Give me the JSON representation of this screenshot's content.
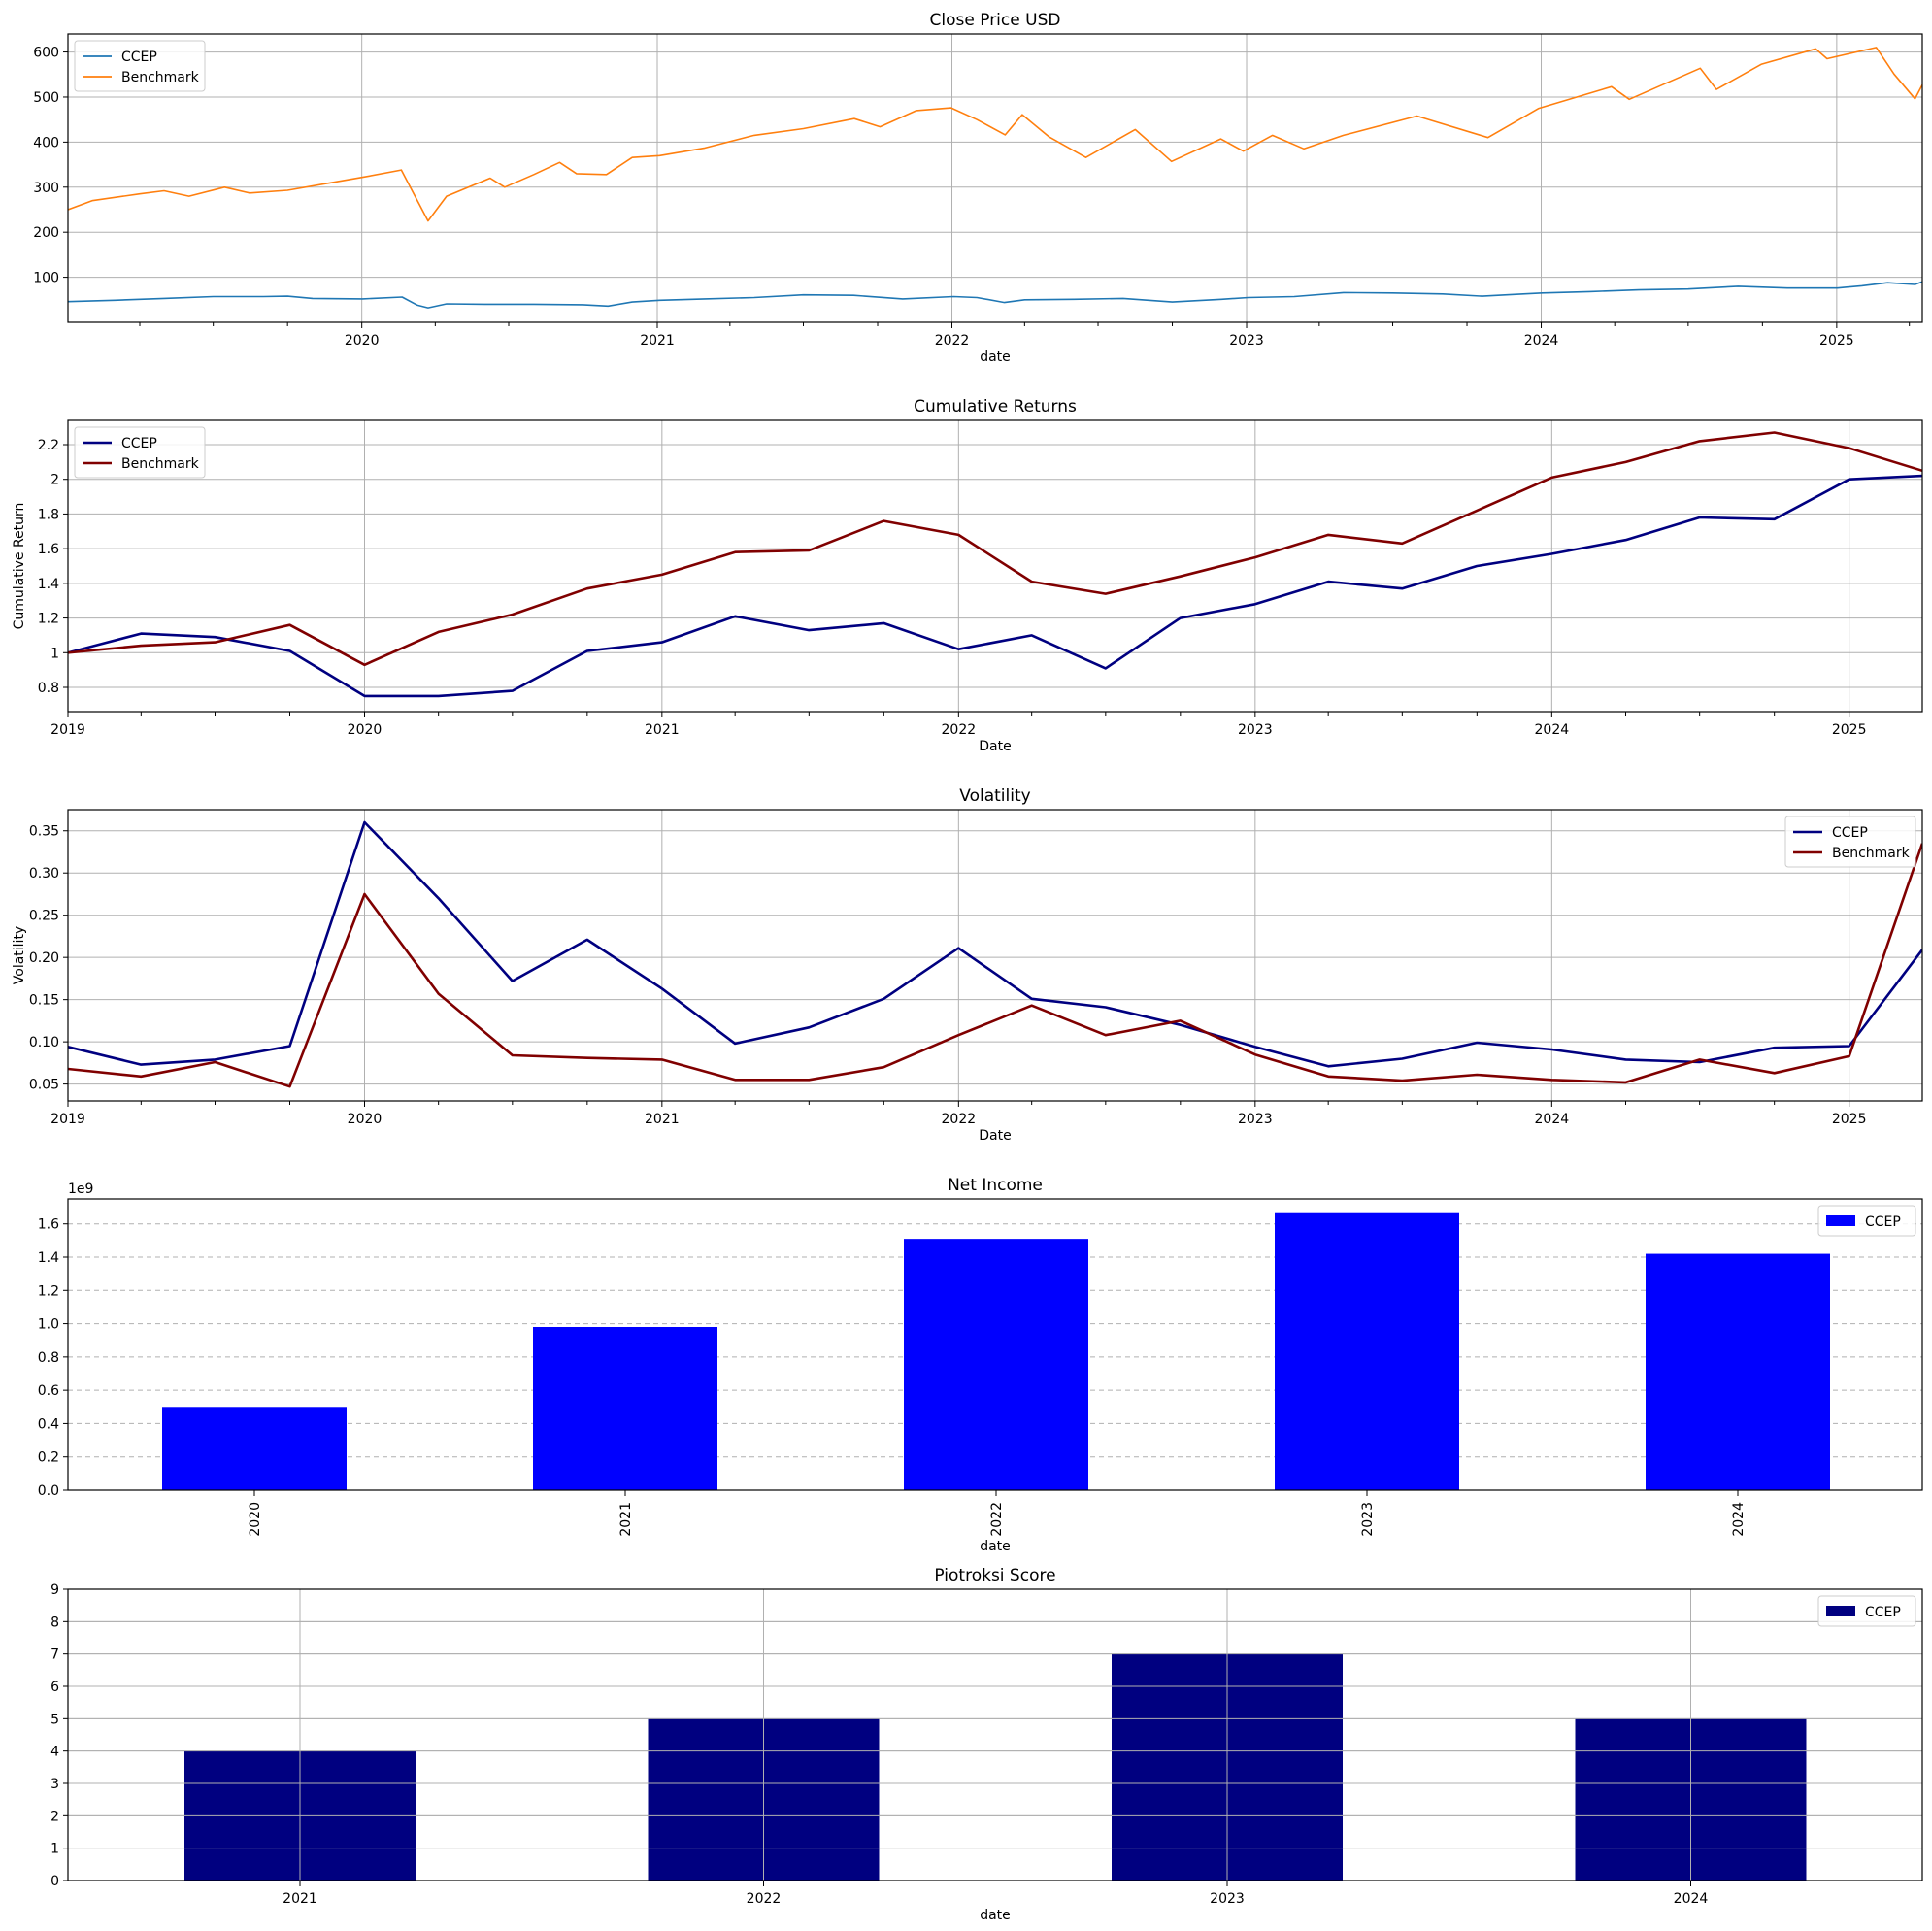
{
  "colors": {
    "ccep_price": "#1f77b4",
    "bench_price": "#ff7f0e",
    "navy": "#000080",
    "maroon": "#800000",
    "blue": "#0000ff",
    "grid": "#b0b0b0",
    "axis": "#000000"
  },
  "chart_data": [
    {
      "id": "close",
      "type": "line",
      "title": "Close Price USD",
      "xlabel": "date",
      "ylabel": "",
      "xlim": [
        "2019-01-02",
        "2025-04-17"
      ],
      "ylim": [
        0,
        640
      ],
      "yticks": [
        100,
        200,
        300,
        400,
        500,
        600
      ],
      "xticks": [
        "2020",
        "2021",
        "2022",
        "2023",
        "2024",
        "2025"
      ],
      "grid": "both",
      "legend": "top-left",
      "series": [
        {
          "name": "CCEP",
          "color_key": "ccep_price",
          "points": [
            [
              "2019-01-02",
              46
            ],
            [
              "2019-03-01",
              49
            ],
            [
              "2019-05-01",
              53
            ],
            [
              "2019-07-01",
              57
            ],
            [
              "2019-09-01",
              57
            ],
            [
              "2019-10-01",
              58
            ],
            [
              "2019-11-01",
              53
            ],
            [
              "2020-01-02",
              52
            ],
            [
              "2020-02-20",
              56
            ],
            [
              "2020-03-10",
              38
            ],
            [
              "2020-03-23",
              32
            ],
            [
              "2020-04-15",
              41
            ],
            [
              "2020-06-01",
              40
            ],
            [
              "2020-08-01",
              40
            ],
            [
              "2020-10-01",
              39
            ],
            [
              "2020-11-01",
              36
            ],
            [
              "2020-12-01",
              45
            ],
            [
              "2021-01-04",
              49
            ],
            [
              "2021-03-01",
              52
            ],
            [
              "2021-05-01",
              55
            ],
            [
              "2021-07-01",
              61
            ],
            [
              "2021-09-01",
              60
            ],
            [
              "2021-11-01",
              52
            ],
            [
              "2022-01-03",
              57
            ],
            [
              "2022-02-01",
              55
            ],
            [
              "2022-03-07",
              44
            ],
            [
              "2022-04-01",
              50
            ],
            [
              "2022-06-01",
              51
            ],
            [
              "2022-08-01",
              53
            ],
            [
              "2022-10-01",
              45
            ],
            [
              "2022-12-01",
              51
            ],
            [
              "2023-01-03",
              55
            ],
            [
              "2023-03-01",
              57
            ],
            [
              "2023-05-01",
              66
            ],
            [
              "2023-07-01",
              65
            ],
            [
              "2023-09-01",
              63
            ],
            [
              "2023-10-20",
              58
            ],
            [
              "2023-12-01",
              62
            ],
            [
              "2024-01-02",
              65
            ],
            [
              "2024-03-01",
              68
            ],
            [
              "2024-05-01",
              72
            ],
            [
              "2024-07-01",
              74
            ],
            [
              "2024-09-01",
              80
            ],
            [
              "2024-11-01",
              76
            ],
            [
              "2025-01-02",
              76
            ],
            [
              "2025-02-01",
              81
            ],
            [
              "2025-03-05",
              88
            ],
            [
              "2025-04-08",
              84
            ],
            [
              "2025-04-17",
              90
            ]
          ]
        },
        {
          "name": "Benchmark",
          "color_key": "bench_price",
          "points": [
            [
              "2019-01-02",
              250
            ],
            [
              "2019-02-01",
              270
            ],
            [
              "2019-04-01",
              285
            ],
            [
              "2019-05-01",
              292
            ],
            [
              "2019-06-01",
              280
            ],
            [
              "2019-07-15",
              300
            ],
            [
              "2019-08-15",
              287
            ],
            [
              "2019-10-01",
              293
            ],
            [
              "2019-12-01",
              312
            ],
            [
              "2020-01-02",
              322
            ],
            [
              "2020-02-19",
              338
            ],
            [
              "2020-03-01",
              300
            ],
            [
              "2020-03-23",
              225
            ],
            [
              "2020-04-15",
              280
            ],
            [
              "2020-06-08",
              320
            ],
            [
              "2020-06-26",
              300
            ],
            [
              "2020-08-01",
              328
            ],
            [
              "2020-09-02",
              355
            ],
            [
              "2020-09-23",
              330
            ],
            [
              "2020-10-30",
              328
            ],
            [
              "2020-12-01",
              366
            ],
            [
              "2021-01-04",
              370
            ],
            [
              "2021-03-01",
              387
            ],
            [
              "2021-05-01",
              415
            ],
            [
              "2021-07-01",
              430
            ],
            [
              "2021-09-02",
              452
            ],
            [
              "2021-10-04",
              434
            ],
            [
              "2021-11-18",
              470
            ],
            [
              "2021-12-31",
              476
            ],
            [
              "2022-02-01",
              450
            ],
            [
              "2022-03-08",
              416
            ],
            [
              "2022-03-29",
              461
            ],
            [
              "2022-05-01",
              412
            ],
            [
              "2022-06-16",
              366
            ],
            [
              "2022-08-16",
              428
            ],
            [
              "2022-09-30",
              357
            ],
            [
              "2022-11-30",
              407
            ],
            [
              "2022-12-28",
              380
            ],
            [
              "2023-02-02",
              415
            ],
            [
              "2023-03-13",
              385
            ],
            [
              "2023-05-01",
              415
            ],
            [
              "2023-07-31",
              458
            ],
            [
              "2023-10-27",
              410
            ],
            [
              "2023-12-29",
              475
            ],
            [
              "2024-03-28",
              523
            ],
            [
              "2024-04-19",
              495
            ],
            [
              "2024-07-16",
              564
            ],
            [
              "2024-08-05",
              517
            ],
            [
              "2024-09-30",
              573
            ],
            [
              "2024-12-06",
              607
            ],
            [
              "2024-12-20",
              585
            ],
            [
              "2025-02-19",
              610
            ],
            [
              "2025-03-13",
              551
            ],
            [
              "2025-04-08",
              496
            ],
            [
              "2025-04-17",
              527
            ]
          ]
        }
      ]
    },
    {
      "id": "cumret",
      "type": "line",
      "title": "Cumulative Returns",
      "xlabel": "Date",
      "ylabel": "Cumulative Return",
      "xlim": [
        "2019-01-01",
        "2025-04-01"
      ],
      "ylim": [
        0.66,
        2.34
      ],
      "yticks": [
        0.8,
        1.0,
        1.2,
        1.4,
        1.6,
        1.8,
        2.0,
        2.2
      ],
      "xticks": [
        "2019",
        "2020",
        "2021",
        "2022",
        "2023",
        "2024",
        "2025"
      ],
      "grid": "both",
      "legend": "top-left",
      "x": [
        "2019-01-01",
        "2019-04-01",
        "2019-07-01",
        "2019-10-01",
        "2020-01-01",
        "2020-04-01",
        "2020-07-01",
        "2020-10-01",
        "2021-01-01",
        "2021-04-01",
        "2021-07-01",
        "2021-10-01",
        "2022-01-01",
        "2022-04-01",
        "2022-07-01",
        "2022-10-01",
        "2023-01-01",
        "2023-04-01",
        "2023-07-01",
        "2023-10-01",
        "2024-01-01",
        "2024-04-01",
        "2024-07-01",
        "2024-10-01",
        "2025-01-01",
        "2025-04-01"
      ],
      "series": [
        {
          "name": "CCEP",
          "color_key": "navy",
          "values": [
            1.0,
            1.11,
            1.09,
            1.01,
            0.75,
            0.75,
            0.78,
            1.01,
            1.06,
            1.21,
            1.13,
            1.17,
            1.02,
            1.1,
            0.91,
            1.2,
            1.28,
            1.41,
            1.37,
            1.5,
            1.57,
            1.65,
            1.78,
            1.77,
            2.0,
            2.02
          ]
        },
        {
          "name": "Benchmark",
          "color_key": "maroon",
          "values": [
            1.0,
            1.04,
            1.06,
            1.16,
            0.93,
            1.12,
            1.22,
            1.37,
            1.45,
            1.58,
            1.59,
            1.76,
            1.68,
            1.41,
            1.34,
            1.44,
            1.55,
            1.68,
            1.63,
            1.82,
            2.01,
            2.1,
            2.22,
            2.27,
            2.18,
            2.05
          ]
        }
      ]
    },
    {
      "id": "vol",
      "type": "line",
      "title": "Volatility",
      "xlabel": "Date",
      "ylabel": "Volatility",
      "xlim": [
        "2019-01-01",
        "2025-04-01"
      ],
      "ylim": [
        0.03,
        0.375
      ],
      "yticks": [
        0.05,
        0.1,
        0.15,
        0.2,
        0.25,
        0.3,
        0.35
      ],
      "ytick_labels": [
        "0.05",
        "0.10",
        "0.15",
        "0.20",
        "0.25",
        "0.30",
        "0.35"
      ],
      "xticks": [
        "2019",
        "2020",
        "2021",
        "2022",
        "2023",
        "2024",
        "2025"
      ],
      "grid": "both",
      "legend": "top-right",
      "x": [
        "2019-01-01",
        "2019-04-01",
        "2019-07-01",
        "2019-10-01",
        "2020-01-01",
        "2020-04-01",
        "2020-07-01",
        "2020-10-01",
        "2021-01-01",
        "2021-04-01",
        "2021-07-01",
        "2021-10-01",
        "2022-01-01",
        "2022-04-01",
        "2022-07-01",
        "2022-10-01",
        "2023-01-01",
        "2023-04-01",
        "2023-07-01",
        "2023-10-01",
        "2024-01-01",
        "2024-04-01",
        "2024-07-01",
        "2024-10-01",
        "2025-01-01",
        "2025-04-01"
      ],
      "series": [
        {
          "name": "CCEP",
          "color_key": "navy",
          "values": [
            0.094,
            0.073,
            0.079,
            0.095,
            0.36,
            0.27,
            0.172,
            0.221,
            0.163,
            0.098,
            0.117,
            0.151,
            0.211,
            0.151,
            0.141,
            0.12,
            0.094,
            0.071,
            0.08,
            0.099,
            0.091,
            0.079,
            0.076,
            0.093,
            0.095,
            0.209
          ]
        },
        {
          "name": "Benchmark",
          "color_key": "maroon",
          "values": [
            0.068,
            0.059,
            0.076,
            0.047,
            0.275,
            0.157,
            0.084,
            0.081,
            0.079,
            0.055,
            0.055,
            0.07,
            0.108,
            0.143,
            0.108,
            0.125,
            0.085,
            0.059,
            0.054,
            0.061,
            0.055,
            0.052,
            0.079,
            0.063,
            0.083,
            0.335
          ]
        }
      ]
    },
    {
      "id": "netincome",
      "type": "bar",
      "title": "Net Income",
      "xlabel": "date",
      "ylabel": "",
      "offset_label": "1e9",
      "categories": [
        "2020",
        "2021",
        "2022",
        "2023",
        "2024"
      ],
      "ylim": [
        0,
        1.75
      ],
      "yticks": [
        0.0,
        0.2,
        0.4,
        0.6,
        0.8,
        1.0,
        1.2,
        1.4,
        1.6
      ],
      "ytick_labels": [
        "0.0",
        "0.2",
        "0.4",
        "0.6",
        "0.8",
        "1.0",
        "1.2",
        "1.4",
        "1.6"
      ],
      "grid": "y-dashed",
      "legend": "top-right",
      "xtick_rotation": "vertical",
      "series": [
        {
          "name": "CCEP",
          "color_key": "blue",
          "values": [
            0.5,
            0.98,
            1.51,
            1.67,
            1.42
          ]
        }
      ]
    },
    {
      "id": "piotroski",
      "type": "bar",
      "title": "Piotroksi Score",
      "xlabel": "date",
      "ylabel": "",
      "categories": [
        "2021",
        "2022",
        "2023",
        "2024"
      ],
      "ylim": [
        0,
        9
      ],
      "yticks": [
        0,
        1,
        2,
        3,
        4,
        5,
        6,
        7,
        8,
        9
      ],
      "ytick_labels": [
        "0",
        "1",
        "2",
        "3",
        "4",
        "5",
        "6",
        "7",
        "8",
        "9"
      ],
      "grid": "both",
      "legend": "top-right",
      "series": [
        {
          "name": "CCEP",
          "color_key": "navy",
          "values": [
            4,
            5,
            7,
            5
          ]
        }
      ]
    }
  ]
}
